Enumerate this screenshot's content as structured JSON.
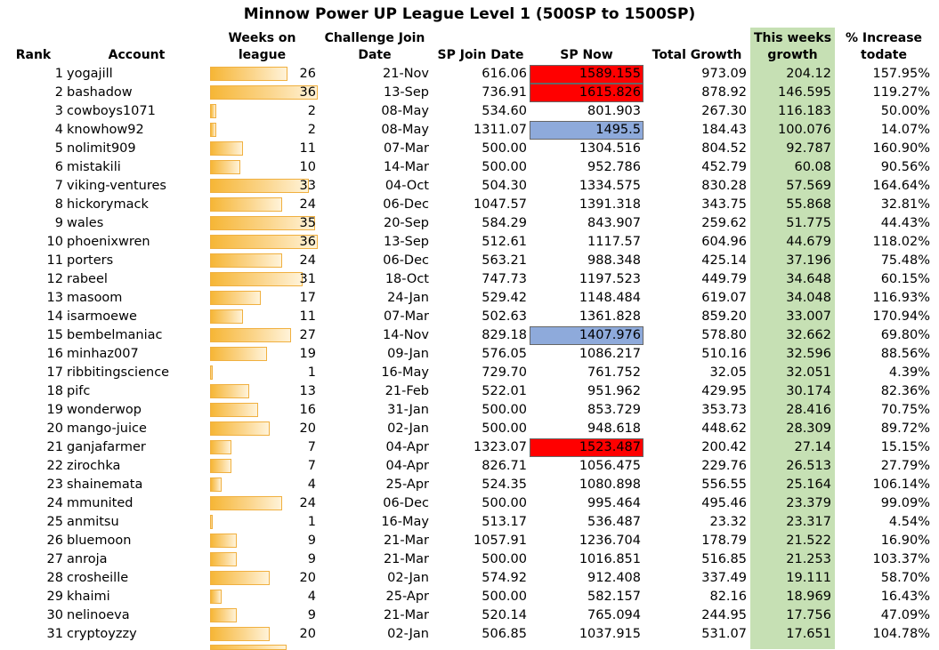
{
  "title": "Minnow Power UP League Level 1 (500SP to 1500SP)",
  "colors": {
    "green_column": "#c6e0b4",
    "red_highlight": "#ff0000",
    "blue_highlight": "#8eaadb",
    "bar_orange": "#f6b636"
  },
  "headers": {
    "rank": "Rank",
    "account": "Account",
    "weeks_1": "Weeks on",
    "weeks_2": "league",
    "challenge_1": "Challenge Join",
    "challenge_2": "Date",
    "sp_join": "SP Join Date",
    "sp_now": "SP Now",
    "total_growth": "Total Growth",
    "this_week_1": "This weeks",
    "this_week_2": "growth",
    "increase_1": "% Increase",
    "increase_2": "todate"
  },
  "max_weeks": 36,
  "rows": [
    {
      "rank": "1",
      "account": "yogajill",
      "weeks": 26,
      "join_date": "21-Nov",
      "sp_join": "616.06",
      "sp_now": "1589.155",
      "highlight": "red",
      "total_growth": "973.09",
      "this_week": "204.12",
      "increase": "157.95%"
    },
    {
      "rank": "2",
      "account": "bashadow",
      "weeks": 36,
      "join_date": "13-Sep",
      "sp_join": "736.91",
      "sp_now": "1615.826",
      "highlight": "red",
      "total_growth": "878.92",
      "this_week": "146.595",
      "increase": "119.27%"
    },
    {
      "rank": "3",
      "account": "cowboys1071",
      "weeks": 2,
      "join_date": "08-May",
      "sp_join": "534.60",
      "sp_now": "801.903",
      "highlight": "",
      "total_growth": "267.30",
      "this_week": "116.183",
      "increase": "50.00%"
    },
    {
      "rank": "4",
      "account": "knowhow92",
      "weeks": 2,
      "join_date": "08-May",
      "sp_join": "1311.07",
      "sp_now": "1495.5",
      "highlight": "blue",
      "total_growth": "184.43",
      "this_week": "100.076",
      "increase": "14.07%"
    },
    {
      "rank": "5",
      "account": "nolimit909",
      "weeks": 11,
      "join_date": "07-Mar",
      "sp_join": "500.00",
      "sp_now": "1304.516",
      "highlight": "",
      "total_growth": "804.52",
      "this_week": "92.787",
      "increase": "160.90%"
    },
    {
      "rank": "6",
      "account": "mistakili",
      "weeks": 10,
      "join_date": "14-Mar",
      "sp_join": "500.00",
      "sp_now": "952.786",
      "highlight": "",
      "total_growth": "452.79",
      "this_week": "60.08",
      "increase": "90.56%"
    },
    {
      "rank": "7",
      "account": "viking-ventures",
      "weeks": 33,
      "join_date": "04-Oct",
      "sp_join": "504.30",
      "sp_now": "1334.575",
      "highlight": "",
      "total_growth": "830.28",
      "this_week": "57.569",
      "increase": "164.64%"
    },
    {
      "rank": "8",
      "account": "hickorymack",
      "weeks": 24,
      "join_date": "06-Dec",
      "sp_join": "1047.57",
      "sp_now": "1391.318",
      "highlight": "",
      "total_growth": "343.75",
      "this_week": "55.868",
      "increase": "32.81%"
    },
    {
      "rank": "9",
      "account": "wales",
      "weeks": 35,
      "join_date": "20-Sep",
      "sp_join": "584.29",
      "sp_now": "843.907",
      "highlight": "",
      "total_growth": "259.62",
      "this_week": "51.775",
      "increase": "44.43%"
    },
    {
      "rank": "10",
      "account": "phoenixwren",
      "weeks": 36,
      "join_date": "13-Sep",
      "sp_join": "512.61",
      "sp_now": "1117.57",
      "highlight": "",
      "total_growth": "604.96",
      "this_week": "44.679",
      "increase": "118.02%"
    },
    {
      "rank": "11",
      "account": "porters",
      "weeks": 24,
      "join_date": "06-Dec",
      "sp_join": "563.21",
      "sp_now": "988.348",
      "highlight": "",
      "total_growth": "425.14",
      "this_week": "37.196",
      "increase": "75.48%"
    },
    {
      "rank": "12",
      "account": "rabeel",
      "weeks": 31,
      "join_date": "18-Oct",
      "sp_join": "747.73",
      "sp_now": "1197.523",
      "highlight": "",
      "total_growth": "449.79",
      "this_week": "34.648",
      "increase": "60.15%"
    },
    {
      "rank": "13",
      "account": "masoom",
      "weeks": 17,
      "join_date": "24-Jan",
      "sp_join": "529.42",
      "sp_now": "1148.484",
      "highlight": "",
      "total_growth": "619.07",
      "this_week": "34.048",
      "increase": "116.93%"
    },
    {
      "rank": "14",
      "account": "isarmoewe",
      "weeks": 11,
      "join_date": "07-Mar",
      "sp_join": "502.63",
      "sp_now": "1361.828",
      "highlight": "",
      "total_growth": "859.20",
      "this_week": "33.007",
      "increase": "170.94%"
    },
    {
      "rank": "15",
      "account": "bembelmaniac",
      "weeks": 27,
      "join_date": "14-Nov",
      "sp_join": "829.18",
      "sp_now": "1407.976",
      "highlight": "blue",
      "total_growth": "578.80",
      "this_week": "32.662",
      "increase": "69.80%"
    },
    {
      "rank": "16",
      "account": "minhaz007",
      "weeks": 19,
      "join_date": "09-Jan",
      "sp_join": "576.05",
      "sp_now": "1086.217",
      "highlight": "",
      "total_growth": "510.16",
      "this_week": "32.596",
      "increase": "88.56%"
    },
    {
      "rank": "17",
      "account": "ribbitingscience",
      "weeks": 1,
      "join_date": "16-May",
      "sp_join": "729.70",
      "sp_now": "761.752",
      "highlight": "",
      "total_growth": "32.05",
      "this_week": "32.051",
      "increase": "4.39%"
    },
    {
      "rank": "18",
      "account": "pifc",
      "weeks": 13,
      "join_date": "21-Feb",
      "sp_join": "522.01",
      "sp_now": "951.962",
      "highlight": "",
      "total_growth": "429.95",
      "this_week": "30.174",
      "increase": "82.36%"
    },
    {
      "rank": "19",
      "account": "wonderwop",
      "weeks": 16,
      "join_date": "31-Jan",
      "sp_join": "500.00",
      "sp_now": "853.729",
      "highlight": "",
      "total_growth": "353.73",
      "this_week": "28.416",
      "increase": "70.75%"
    },
    {
      "rank": "20",
      "account": "mango-juice",
      "weeks": 20,
      "join_date": "02-Jan",
      "sp_join": "500.00",
      "sp_now": "948.618",
      "highlight": "",
      "total_growth": "448.62",
      "this_week": "28.309",
      "increase": "89.72%"
    },
    {
      "rank": "21",
      "account": "ganjafarmer",
      "weeks": 7,
      "join_date": "04-Apr",
      "sp_join": "1323.07",
      "sp_now": "1523.487",
      "highlight": "red",
      "total_growth": "200.42",
      "this_week": "27.14",
      "increase": "15.15%"
    },
    {
      "rank": "22",
      "account": "zirochka",
      "weeks": 7,
      "join_date": "04-Apr",
      "sp_join": "826.71",
      "sp_now": "1056.475",
      "highlight": "",
      "total_growth": "229.76",
      "this_week": "26.513",
      "increase": "27.79%"
    },
    {
      "rank": "23",
      "account": "shainemata",
      "weeks": 4,
      "join_date": "25-Apr",
      "sp_join": "524.35",
      "sp_now": "1080.898",
      "highlight": "",
      "total_growth": "556.55",
      "this_week": "25.164",
      "increase": "106.14%"
    },
    {
      "rank": "24",
      "account": "mmunited",
      "weeks": 24,
      "join_date": "06-Dec",
      "sp_join": "500.00",
      "sp_now": "995.464",
      "highlight": "",
      "total_growth": "495.46",
      "this_week": "23.379",
      "increase": "99.09%"
    },
    {
      "rank": "25",
      "account": "anmitsu",
      "weeks": 1,
      "join_date": "16-May",
      "sp_join": "513.17",
      "sp_now": "536.487",
      "highlight": "",
      "total_growth": "23.32",
      "this_week": "23.317",
      "increase": "4.54%"
    },
    {
      "rank": "26",
      "account": "bluemoon",
      "weeks": 9,
      "join_date": "21-Mar",
      "sp_join": "1057.91",
      "sp_now": "1236.704",
      "highlight": "",
      "total_growth": "178.79",
      "this_week": "21.522",
      "increase": "16.90%"
    },
    {
      "rank": "27",
      "account": "anroja",
      "weeks": 9,
      "join_date": "21-Mar",
      "sp_join": "500.00",
      "sp_now": "1016.851",
      "highlight": "",
      "total_growth": "516.85",
      "this_week": "21.253",
      "increase": "103.37%"
    },
    {
      "rank": "28",
      "account": "crosheille",
      "weeks": 20,
      "join_date": "02-Jan",
      "sp_join": "574.92",
      "sp_now": "912.408",
      "highlight": "",
      "total_growth": "337.49",
      "this_week": "19.111",
      "increase": "58.70%"
    },
    {
      "rank": "29",
      "account": "khaimi",
      "weeks": 4,
      "join_date": "25-Apr",
      "sp_join": "500.00",
      "sp_now": "582.157",
      "highlight": "",
      "total_growth": "82.16",
      "this_week": "18.969",
      "increase": "16.43%"
    },
    {
      "rank": "30",
      "account": "nelinoeva",
      "weeks": 9,
      "join_date": "21-Mar",
      "sp_join": "520.14",
      "sp_now": "765.094",
      "highlight": "",
      "total_growth": "244.95",
      "this_week": "17.756",
      "increase": "47.09%"
    },
    {
      "rank": "31",
      "account": "cryptoyzzy",
      "weeks": 20,
      "join_date": "02-Jan",
      "sp_join": "506.85",
      "sp_now": "1037.915",
      "highlight": "",
      "total_growth": "531.07",
      "this_week": "17.651",
      "increase": "104.78%"
    }
  ]
}
